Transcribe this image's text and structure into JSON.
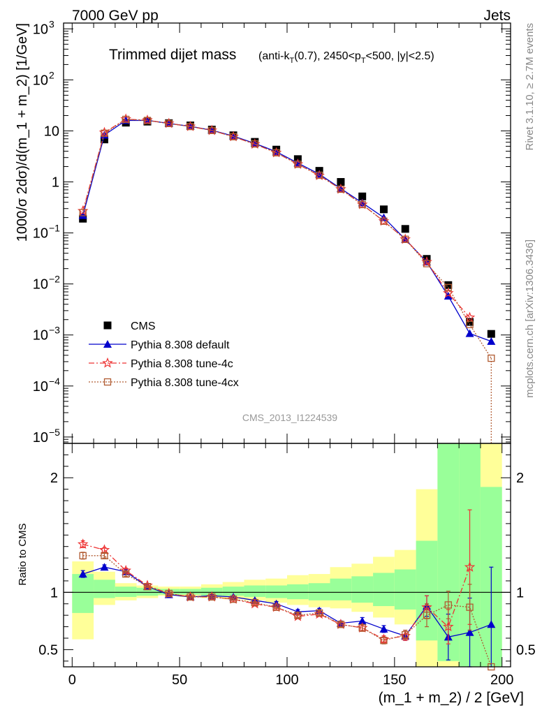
{
  "header": {
    "left": "7000 GeV pp",
    "right": "Jets"
  },
  "side_labels": {
    "rivet": "Rivet 3.1.10, ≥ 2.7M events",
    "mcplots": "mcplots.cern.ch [arXiv:1306.3436]"
  },
  "watermark": "CMS_2013_I1224539",
  "chart_data": [
    {
      "type": "scatter",
      "title": "Trimmed dijet mass",
      "subtitle": "(anti-kT(0.7), 2450<pT<500, |y|<2.5)",
      "ylabel": "1000/σ 2dσ)/d(m_1 + m_2) [1/GeV]",
      "xlabel": "",
      "xlim": [
        -4,
        204
      ],
      "ylim": [
        7.5e-06,
        1300
      ],
      "log_y": true,
      "legend_position": "bottom-left",
      "x": [
        5,
        15,
        25,
        35,
        45,
        55,
        65,
        75,
        85,
        95,
        105,
        115,
        125,
        135,
        145,
        155,
        165,
        175,
        185,
        195
      ],
      "series": [
        {
          "name": "CMS",
          "color": "#000000",
          "values": [
            0.19,
            6.8,
            14.5,
            15.2,
            14.2,
            12.8,
            10.6,
            8.2,
            6.1,
            4.3,
            2.8,
            1.65,
            1.0,
            0.52,
            0.29,
            0.12,
            0.031,
            0.0095,
            0.0018,
            0.00105
          ]
        },
        {
          "name": "Pythia 8.308 default",
          "color": "#0000cc",
          "values": [
            0.22,
            8.3,
            16.0,
            16.1,
            14.0,
            12.3,
            10.3,
            7.9,
            5.7,
            3.9,
            2.35,
            1.42,
            0.74,
            0.39,
            0.2,
            0.075,
            0.027,
            0.0058,
            0.00107,
            0.00075
          ]
        },
        {
          "name": "Pythia 8.308 tune-4c",
          "color": "#ee3333",
          "values": [
            0.27,
            9.3,
            17.0,
            16.2,
            14.0,
            12.2,
            10.2,
            7.7,
            5.5,
            3.73,
            2.22,
            1.33,
            0.72,
            0.36,
            0.17,
            0.075,
            0.027,
            0.0066,
            0.0022,
            0.0
          ]
        },
        {
          "name": "Pythia 8.308 tune-4cx",
          "color": "#b05a30",
          "values": [
            0.25,
            9.0,
            16.8,
            16.0,
            14.0,
            12.2,
            10.2,
            7.7,
            5.55,
            3.73,
            2.22,
            1.35,
            0.72,
            0.36,
            0.17,
            0.075,
            0.025,
            0.0085,
            0.0016,
            0.00035
          ]
        }
      ],
      "legend": [
        {
          "label": "CMS"
        },
        {
          "label": "Pythia 8.308 default"
        },
        {
          "label": "Pythia 8.308 tune-4c"
        },
        {
          "label": "Pythia 8.308 tune-4cx"
        }
      ],
      "y_ticks": [
        {
          "v": 1e-05,
          "label": "10",
          "exp": "−5"
        },
        {
          "v": 0.0001,
          "label": "10",
          "exp": "−4"
        },
        {
          "v": 0.001,
          "label": "10",
          "exp": "−3"
        },
        {
          "v": 0.01,
          "label": "10",
          "exp": "−2"
        },
        {
          "v": 0.1,
          "label": "10",
          "exp": "−1"
        },
        {
          "v": 1,
          "label": "1",
          "exp": ""
        },
        {
          "v": 10,
          "label": "10",
          "exp": ""
        },
        {
          "v": 100,
          "label": "10",
          "exp": "2"
        },
        {
          "v": 1000,
          "label": "10",
          "exp": "3"
        }
      ]
    },
    {
      "type": "line",
      "title": "",
      "ylabel": "Ratio to CMS",
      "xlabel": "(m_1 + m_2) / 2 [GeV]",
      "xlim": [
        -4,
        204
      ],
      "ylim": [
        0.35,
        2.3
      ],
      "reference_line": 1,
      "x": [
        5,
        15,
        25,
        35,
        45,
        55,
        65,
        75,
        85,
        95,
        105,
        115,
        125,
        135,
        145,
        155,
        165,
        175,
        185,
        195
      ],
      "bins": [
        [
          0,
          10
        ],
        [
          10,
          20
        ],
        [
          20,
          30
        ],
        [
          30,
          40
        ],
        [
          40,
          50
        ],
        [
          50,
          60
        ],
        [
          60,
          70
        ],
        [
          70,
          80
        ],
        [
          80,
          90
        ],
        [
          90,
          100
        ],
        [
          100,
          110
        ],
        [
          110,
          120
        ],
        [
          120,
          130
        ],
        [
          130,
          140
        ],
        [
          140,
          150
        ],
        [
          150,
          160
        ],
        [
          160,
          170
        ],
        [
          170,
          180
        ],
        [
          180,
          190
        ],
        [
          190,
          200
        ]
      ],
      "band_green": [
        [
          0.82,
          1.16
        ],
        [
          0.95,
          1.11
        ],
        [
          0.96,
          1.05
        ],
        [
          0.97,
          1.04
        ],
        [
          0.98,
          1.03
        ],
        [
          0.98,
          1.03
        ],
        [
          0.97,
          1.04
        ],
        [
          0.97,
          1.05
        ],
        [
          0.96,
          1.06
        ],
        [
          0.95,
          1.06
        ],
        [
          0.94,
          1.07
        ],
        [
          0.93,
          1.08
        ],
        [
          0.93,
          1.12
        ],
        [
          0.91,
          1.14
        ],
        [
          0.88,
          1.17
        ],
        [
          0.85,
          1.2
        ],
        [
          0.58,
          1.45
        ],
        [
          0.4,
          2.3
        ],
        [
          0.35,
          2.3
        ],
        [
          0.35,
          1.92
        ]
      ],
      "band_yellow": [
        [
          0.59,
          1.27
        ],
        [
          0.89,
          1.18
        ],
        [
          0.93,
          1.08
        ],
        [
          0.95,
          1.06
        ],
        [
          0.97,
          1.05
        ],
        [
          0.96,
          1.05
        ],
        [
          0.95,
          1.07
        ],
        [
          0.94,
          1.09
        ],
        [
          0.93,
          1.11
        ],
        [
          0.91,
          1.12
        ],
        [
          0.89,
          1.15
        ],
        [
          0.87,
          1.16
        ],
        [
          0.86,
          1.22
        ],
        [
          0.83,
          1.25
        ],
        [
          0.78,
          1.31
        ],
        [
          0.72,
          1.37
        ],
        [
          0.35,
          1.9
        ],
        [
          0.35,
          2.3
        ],
        [
          0.35,
          2.3
        ],
        [
          0.35,
          2.3
        ]
      ],
      "series": [
        {
          "name": "Pythia 8.308 default",
          "color": "#0000cc",
          "values": [
            1.16,
            1.22,
            1.18,
            1.05,
            0.98,
            0.96,
            0.97,
            0.96,
            0.93,
            0.9,
            0.83,
            0.84,
            0.73,
            0.75,
            0.68,
            0.62,
            0.88,
            0.61,
            0.65,
            0.72
          ],
          "errors": [
            0.03,
            0.02,
            0.02,
            0.01,
            0.01,
            0.01,
            0.01,
            0.01,
            0.01,
            0.02,
            0.02,
            0.02,
            0.02,
            0.03,
            0.03,
            0.04,
            0.09,
            0.2,
            0.3,
            0.5
          ]
        },
        {
          "name": "Pythia 8.308 tune-4c",
          "color": "#ee3333",
          "values": [
            1.42,
            1.37,
            1.19,
            1.06,
            0.99,
            0.96,
            0.96,
            0.94,
            0.9,
            0.87,
            0.79,
            0.81,
            0.72,
            0.69,
            0.59,
            0.62,
            0.87,
            0.7,
            1.22,
            0.0
          ],
          "errors": [
            0.03,
            0.02,
            0.02,
            0.01,
            0.01,
            0.01,
            0.01,
            0.01,
            0.01,
            0.01,
            0.02,
            0.02,
            0.02,
            0.03,
            0.03,
            0.04,
            0.1,
            0.15,
            0.5,
            0.0
          ]
        },
        {
          "name": "Pythia 8.308 tune-4cx",
          "color": "#b05a30",
          "values": [
            1.32,
            1.32,
            1.16,
            1.05,
            0.99,
            0.96,
            0.96,
            0.94,
            0.91,
            0.87,
            0.8,
            0.82,
            0.72,
            0.69,
            0.58,
            0.63,
            0.8,
            0.89,
            0.87,
            0.33
          ],
          "errors": [
            0.03,
            0.02,
            0.02,
            0.01,
            0.01,
            0.01,
            0.01,
            0.01,
            0.01,
            0.01,
            0.02,
            0.02,
            0.02,
            0.03,
            0.03,
            0.04,
            0.1,
            0.12,
            0.2,
            0.0
          ]
        }
      ],
      "y_ticks": [
        {
          "v": 0.5,
          "label": "0.5"
        },
        {
          "v": 1,
          "label": "1"
        },
        {
          "v": 2,
          "label": "2"
        }
      ],
      "x_ticks": [
        {
          "v": 0,
          "label": "0"
        },
        {
          "v": 50,
          "label": "50"
        },
        {
          "v": 100,
          "label": "100"
        },
        {
          "v": 150,
          "label": "150"
        },
        {
          "v": 200,
          "label": "200"
        }
      ]
    }
  ]
}
